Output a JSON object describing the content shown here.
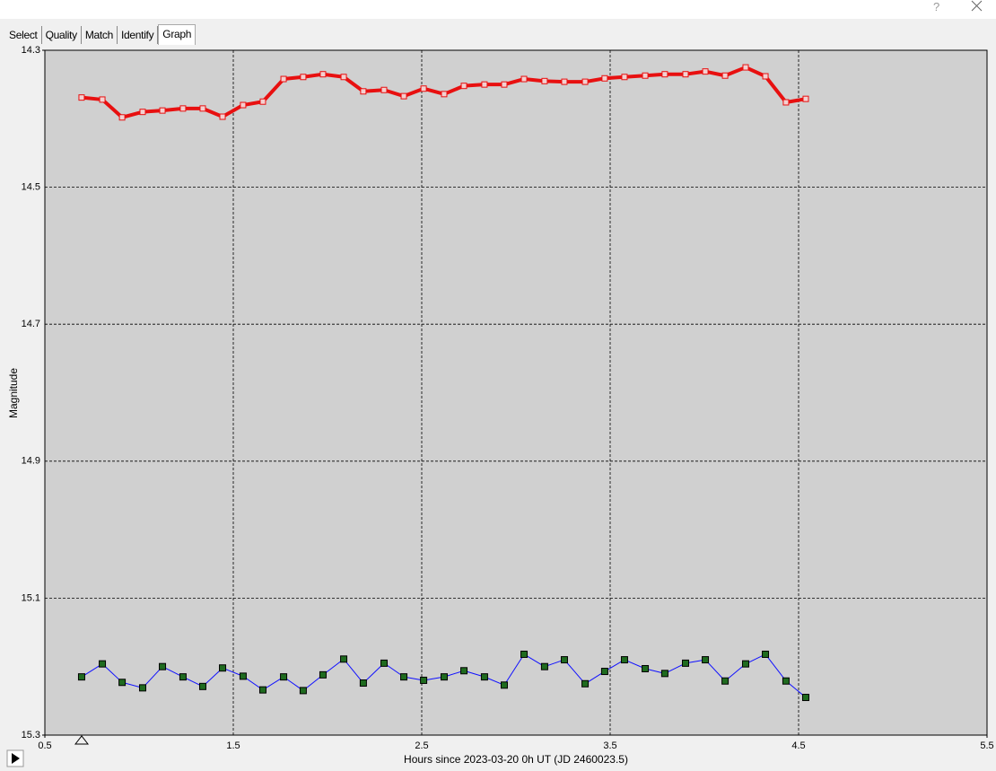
{
  "window": {
    "help": "?"
  },
  "tabs": [
    "Select",
    "Quality",
    "Match",
    "Identify",
    "Graph"
  ],
  "chart_data": {
    "type": "line",
    "xlabel": "Hours since 2023-03-20 0h UT (JD 2460023.5)",
    "ylabel": "Magnitude",
    "xlim": [
      0.5,
      5.5
    ],
    "xticks": [
      0.5,
      1.5,
      2.5,
      3.5,
      4.5,
      5.5
    ],
    "ylim": [
      14.3,
      15.3
    ],
    "yticks": [
      14.3,
      14.5,
      14.7,
      14.9,
      15.1,
      15.3
    ],
    "y_inverted": true,
    "grid": true,
    "x": [
      0.695,
      0.805,
      0.91,
      1.019,
      1.124,
      1.233,
      1.338,
      1.443,
      1.552,
      1.657,
      1.767,
      1.871,
      1.976,
      2.086,
      2.19,
      2.3,
      2.405,
      2.51,
      2.619,
      2.724,
      2.833,
      2.938,
      3.043,
      3.152,
      3.257,
      3.367,
      3.471,
      3.576,
      3.686,
      3.79,
      3.9,
      4.005,
      4.11,
      4.219,
      4.324,
      4.433,
      4.538
    ],
    "series": [
      {
        "color": "#e81010",
        "marker_color": "#f4d0d0",
        "values": [
          14.369,
          14.372,
          14.398,
          14.39,
          14.388,
          14.385,
          14.385,
          14.397,
          14.38,
          14.375,
          14.342,
          14.339,
          14.335,
          14.339,
          14.36,
          14.358,
          14.367,
          14.356,
          14.364,
          14.352,
          14.35,
          14.35,
          14.342,
          14.345,
          14.346,
          14.346,
          14.341,
          14.339,
          14.337,
          14.335,
          14.335,
          14.331,
          14.337,
          14.325,
          14.338,
          14.376,
          14.371
        ]
      },
      {
        "color": "#1010ff",
        "marker_color": "#1f6b1f",
        "values": [
          15.215,
          15.196,
          15.223,
          15.231,
          15.2,
          15.215,
          15.229,
          15.202,
          15.214,
          15.234,
          15.215,
          15.235,
          15.212,
          15.189,
          15.224,
          15.195,
          15.215,
          15.22,
          15.215,
          15.206,
          15.215,
          15.227,
          15.182,
          15.2,
          15.19,
          15.225,
          15.207,
          15.19,
          15.203,
          15.21,
          15.195,
          15.19,
          15.221,
          15.196,
          15.182,
          15.221,
          15.245
        ]
      }
    ]
  }
}
